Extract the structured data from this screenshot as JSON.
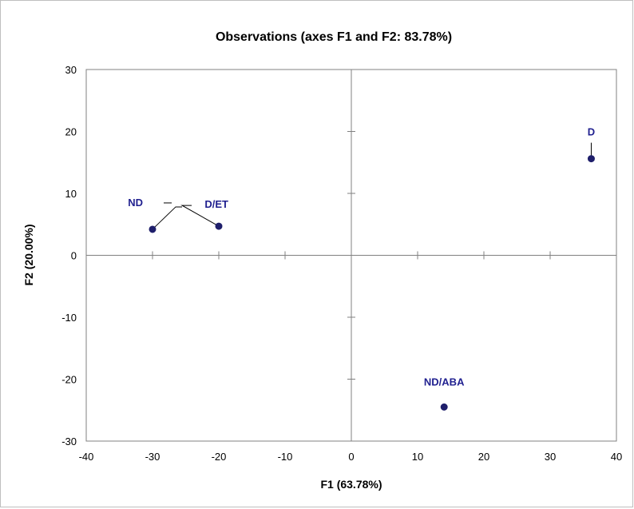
{
  "chart_data": {
    "type": "scatter",
    "title": "Observations (axes F1 and F2: 83.78%)",
    "xlabel": "F1 (63.78%)",
    "ylabel": "F2 (20.00%)",
    "xlim": [
      -40,
      40
    ],
    "ylim": [
      -30,
      30
    ],
    "xticks": [
      -40,
      -30,
      -20,
      -10,
      0,
      10,
      20,
      30,
      40
    ],
    "yticks": [
      -30,
      -20,
      -10,
      0,
      10,
      20,
      30
    ],
    "grid": false,
    "legend": "none",
    "point_color": "#1f1f6b",
    "label_color": "#1f1f8f",
    "points": [
      {
        "label": "ND",
        "x": -30,
        "y": 4.2
      },
      {
        "label": "D/ET",
        "x": -20,
        "y": 4.7
      },
      {
        "label": "D",
        "x": 36.2,
        "y": 15.6
      },
      {
        "label": "ND/ABA",
        "x": 14,
        "y": -24.5
      }
    ]
  }
}
